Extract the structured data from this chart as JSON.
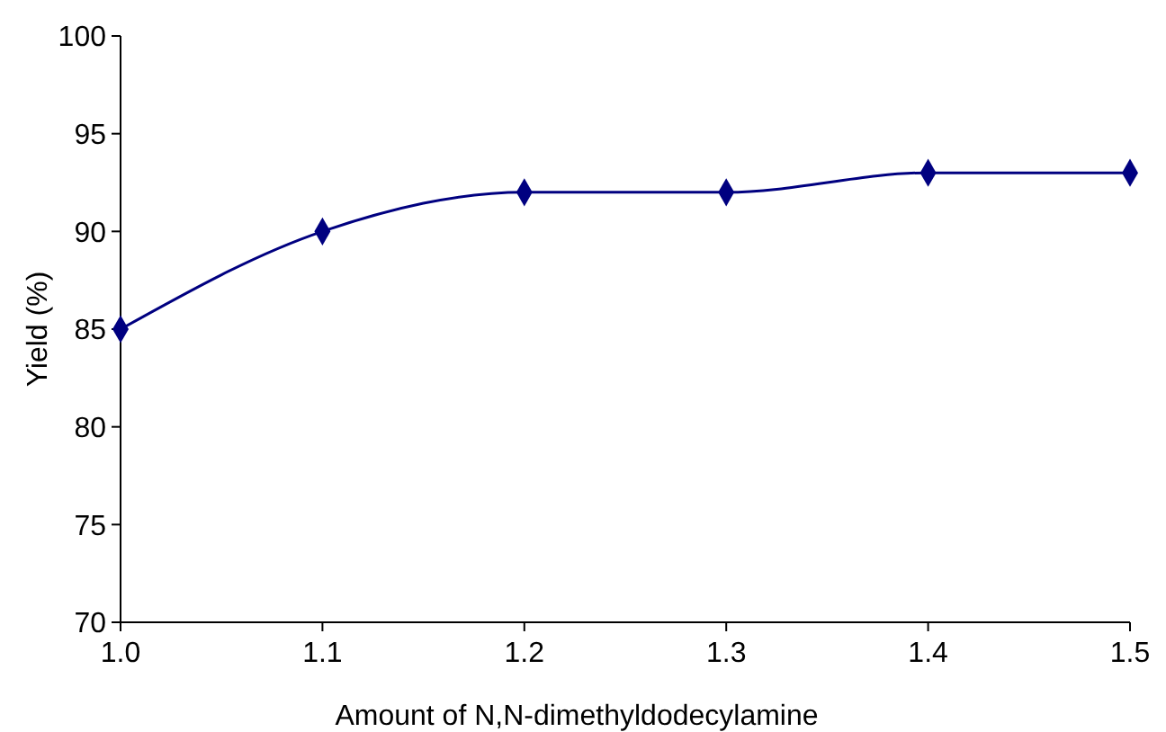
{
  "chart_data": {
    "type": "line",
    "xlabel": "Amount of N,N-dimethyldodecylamine",
    "ylabel": "Yield (%)",
    "x": [
      1.0,
      1.1,
      1.2,
      1.3,
      1.4,
      1.5
    ],
    "series": [
      {
        "color": "#000080",
        "values": [
          85,
          90,
          92,
          92,
          93,
          93
        ]
      }
    ],
    "xlim": [
      1.0,
      1.5
    ],
    "xticks": [
      {
        "value": 1.0,
        "label": "1.0"
      },
      {
        "value": 1.1,
        "label": "1.1"
      },
      {
        "value": 1.2,
        "label": "1.2"
      },
      {
        "value": 1.3,
        "label": "1.3"
      },
      {
        "value": 1.4,
        "label": "1.4"
      },
      {
        "value": 1.5,
        "label": "1.5"
      }
    ],
    "ylim": [
      70,
      100
    ],
    "yticks": [
      70,
      75,
      80,
      85,
      90,
      95,
      100
    ],
    "marker": "diamond",
    "line_style": "solid",
    "grid": false
  }
}
